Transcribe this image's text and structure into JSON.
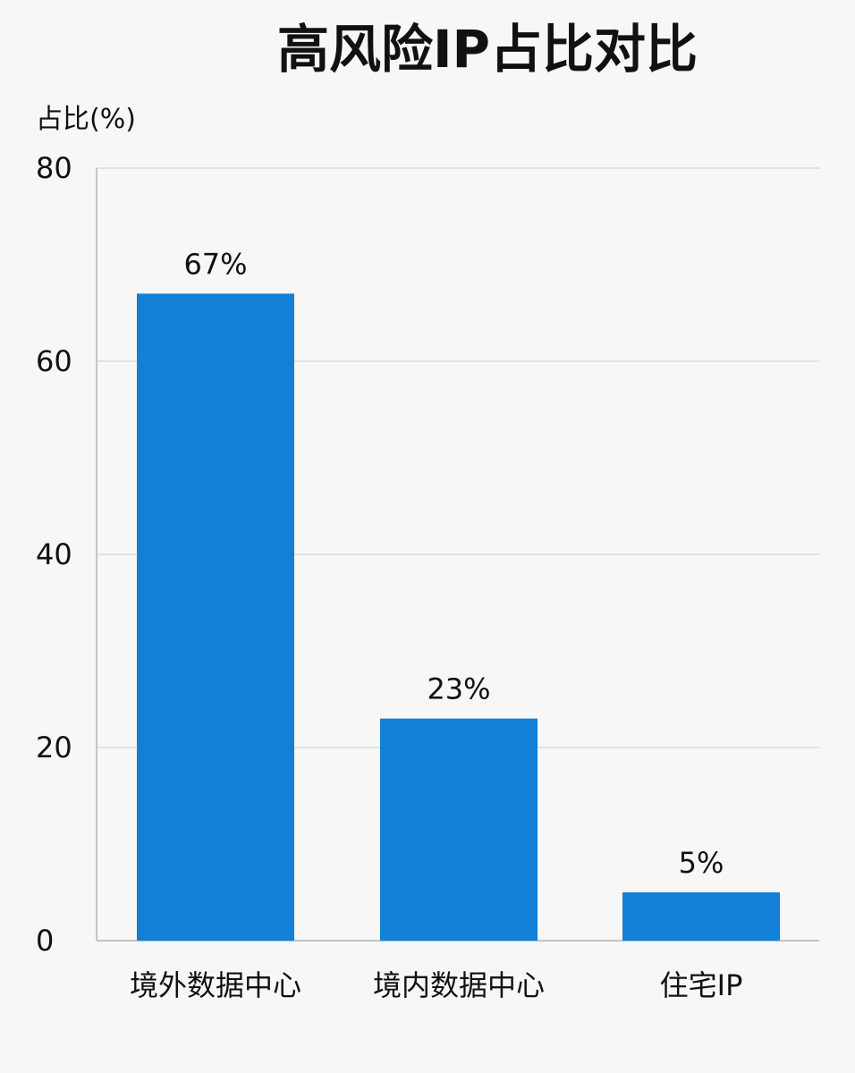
{
  "chart_data": {
    "type": "bar",
    "title": "高风险IP占比对比",
    "xlabel": "",
    "ylabel": "占比(%)",
    "ylim": [
      0,
      80
    ],
    "yticks": [
      0,
      20,
      40,
      60,
      80
    ],
    "grid": true,
    "categories": [
      "境外数据中心",
      "境内数据中心",
      "住宅IP"
    ],
    "values": [
      67,
      23,
      5
    ],
    "data_labels": [
      "67%",
      "23%",
      "5%"
    ],
    "bar_color": "#1380d8",
    "grid_color": "#d9dbe6",
    "axis_color": "#c2c4cc"
  }
}
